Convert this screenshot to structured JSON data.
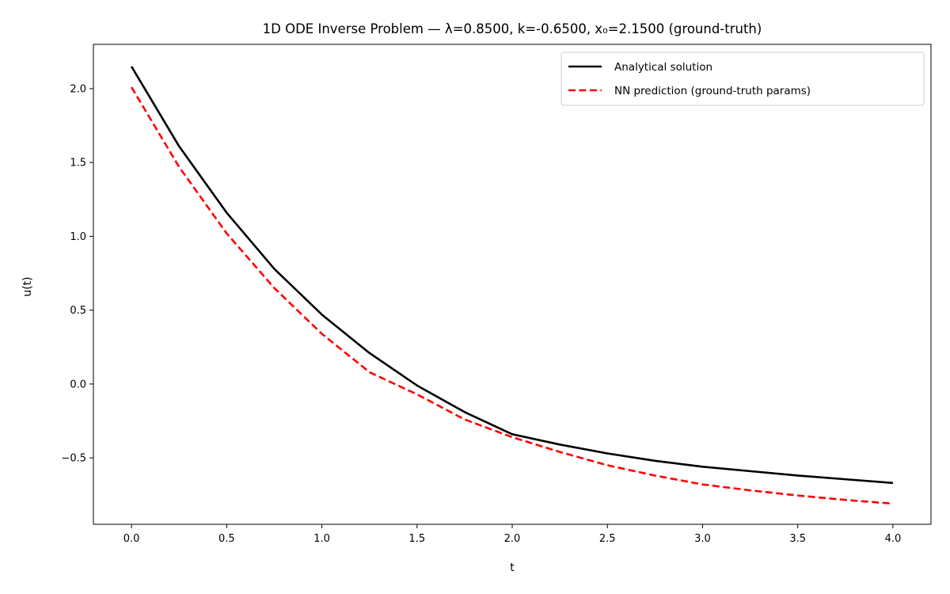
{
  "chart_data": {
    "type": "line",
    "title": "1D ODE Inverse Problem — λ=0.8500, k=-0.6500, x₀=2.1500 (ground-truth)",
    "xlabel": "t",
    "ylabel": "u(t)",
    "xlim": [
      -0.2,
      4.2
    ],
    "ylim": [
      -0.95,
      2.3
    ],
    "xticks": [
      0.0,
      0.5,
      1.0,
      1.5,
      2.0,
      2.5,
      3.0,
      3.5,
      4.0
    ],
    "xtick_labels": [
      "0.0",
      "0.5",
      "1.0",
      "1.5",
      "2.0",
      "2.5",
      "3.0",
      "3.5",
      "4.0"
    ],
    "yticks": [
      -0.5,
      0.0,
      0.5,
      1.0,
      1.5,
      2.0
    ],
    "ytick_labels": [
      "−0.5",
      "0.0",
      "0.5",
      "1.0",
      "1.5",
      "2.0"
    ],
    "grid": false,
    "legend_position": "top-right",
    "series": [
      {
        "name": "Analytical solution",
        "color": "#000000",
        "style": "solid",
        "x": [
          0.0,
          0.25,
          0.5,
          0.75,
          1.0,
          1.25,
          1.5,
          1.75,
          2.0,
          2.25,
          2.5,
          2.75,
          3.0,
          3.25,
          3.5,
          3.75,
          4.0
        ],
        "y": [
          2.15,
          1.61,
          1.16,
          0.78,
          0.47,
          0.21,
          -0.01,
          -0.19,
          -0.34,
          -0.41,
          -0.47,
          -0.52,
          -0.56,
          -0.59,
          -0.62,
          -0.645,
          -0.67
        ]
      },
      {
        "name": "NN prediction (ground-truth params)",
        "color": "#ff0000",
        "style": "dashed",
        "x": [
          0.0,
          0.25,
          0.5,
          0.75,
          1.0,
          1.25,
          1.5,
          1.75,
          2.0,
          2.25,
          2.5,
          2.75,
          3.0,
          3.25,
          3.5,
          3.75,
          4.0
        ],
        "y": [
          2.01,
          1.47,
          1.02,
          0.65,
          0.34,
          0.08,
          -0.07,
          -0.24,
          -0.36,
          -0.46,
          -0.55,
          -0.62,
          -0.68,
          -0.72,
          -0.755,
          -0.785,
          -0.81
        ]
      }
    ]
  }
}
